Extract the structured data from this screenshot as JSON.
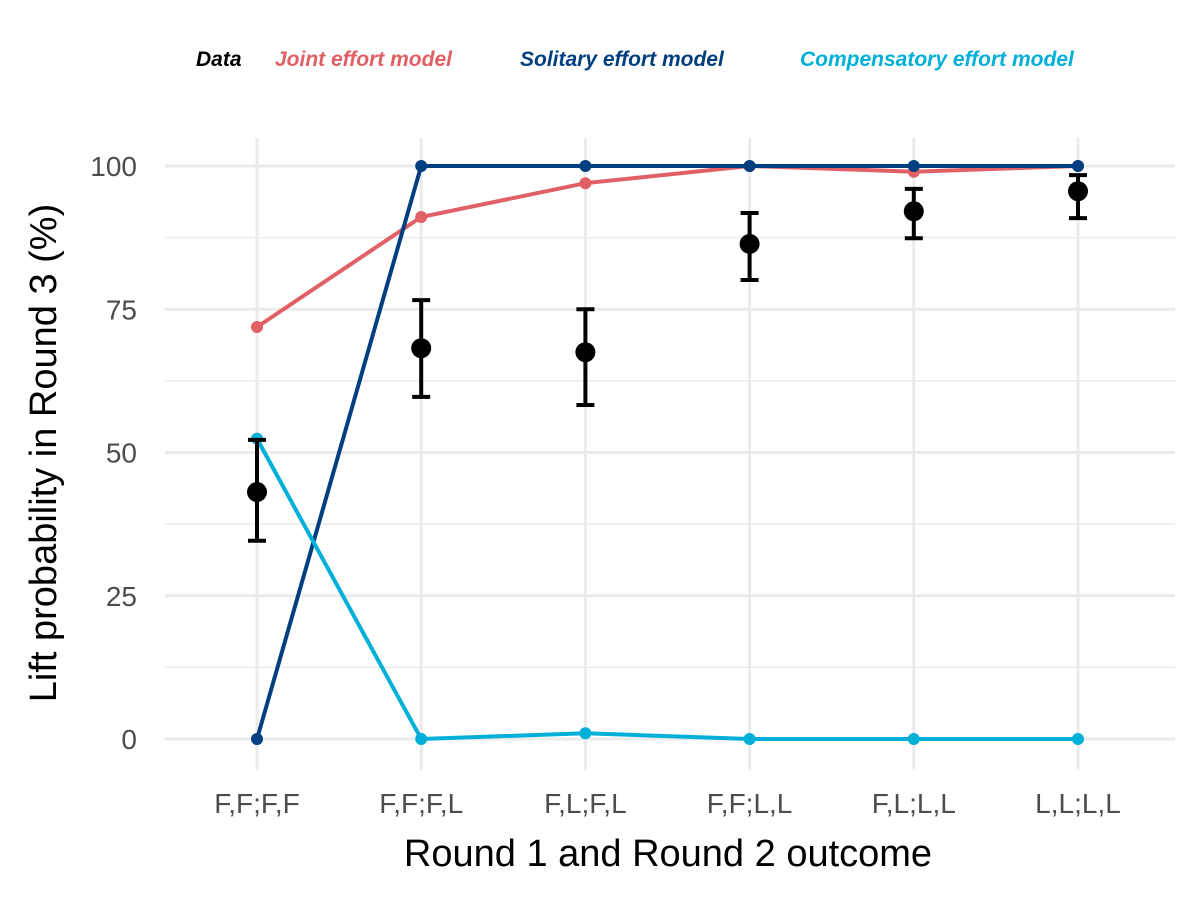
{
  "chart_data": {
    "type": "line",
    "title": "",
    "xlabel": "Round 1 and Round 2 outcome",
    "ylabel": "Lift probability in Round 3 (%)",
    "categories": [
      "F,F;F,F",
      "F,F;F,L",
      "F,L;F,L",
      "F,F;L,L",
      "F,L;L,L",
      "L,L;L,L"
    ],
    "ylim": [
      -5,
      105
    ],
    "yticks": [
      0,
      25,
      50,
      75,
      100
    ],
    "ytick_labels": [
      "0",
      "25",
      "50",
      "75",
      "100"
    ],
    "grid": true,
    "legend_position": "top",
    "legend": [
      {
        "label": "Data",
        "color": "#000000"
      },
      {
        "label": "Joint effort model",
        "color": "#E06066"
      },
      {
        "label": "Solitary effort model",
        "color": "#003F7F"
      },
      {
        "label": "Compensatory effort model",
        "color": "#00B0D8"
      }
    ],
    "series": [
      {
        "name": "Joint effort model",
        "color": "#E06066",
        "values": [
          71.9,
          91.1,
          97.0,
          100,
          99.0,
          100
        ]
      },
      {
        "name": "Solitary effort model",
        "color": "#003F7F",
        "values": [
          0,
          100,
          100,
          100,
          100,
          100
        ]
      },
      {
        "name": "Compensatory effort model",
        "color": "#00B0D8",
        "values": [
          52.4,
          0,
          1.0,
          0,
          0,
          0
        ]
      }
    ],
    "data_points": {
      "name": "Data",
      "color": "#000000",
      "values": [
        43.1,
        68.2,
        67.5,
        86.4,
        92.1,
        95.6
      ],
      "lower": [
        34.6,
        59.7,
        58.3,
        80.1,
        87.4,
        90.9
      ],
      "upper": [
        52.2,
        76.6,
        75.0,
        91.8,
        96.0,
        98.4
      ]
    }
  }
}
